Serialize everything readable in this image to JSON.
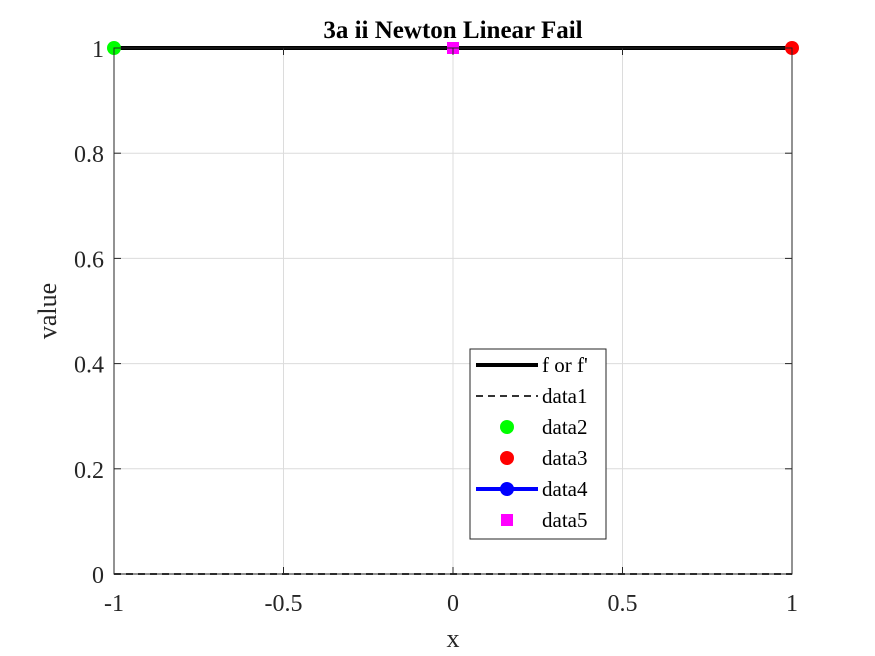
{
  "chart_data": {
    "type": "line",
    "title": "3a ii Newton Linear Fail",
    "xlabel": "x",
    "ylabel": "value",
    "xlim": [
      -1,
      1
    ],
    "ylim": [
      0,
      1
    ],
    "xticks": [
      -1,
      -0.5,
      0,
      0.5,
      1
    ],
    "xtick_labels": [
      "-1",
      "-0.5",
      "0",
      "0.5",
      "1"
    ],
    "yticks": [
      0,
      0.2,
      0.4,
      0.6,
      0.8,
      1
    ],
    "ytick_labels": [
      "0",
      "0.2",
      "0.4",
      "0.6",
      "0.8",
      "1"
    ],
    "grid": true,
    "legend_position": "bottom-center",
    "series": [
      {
        "name": "f or f'",
        "style": "solid-line",
        "color": "#000000",
        "x": [
          -1,
          1
        ],
        "y": [
          1,
          1
        ]
      },
      {
        "name": "data1",
        "style": "dashed-line",
        "color": "#333333",
        "x": [
          -1,
          1
        ],
        "y": [
          0,
          0
        ]
      },
      {
        "name": "data2",
        "style": "circle-marker",
        "color": "#00ff00",
        "x": [
          -1
        ],
        "y": [
          1
        ]
      },
      {
        "name": "data3",
        "style": "circle-marker",
        "color": "#ff0000",
        "x": [
          1
        ],
        "y": [
          1
        ]
      },
      {
        "name": "data4",
        "style": "line-circle",
        "color": "#0000ff",
        "x": [],
        "y": []
      },
      {
        "name": "data5",
        "style": "square-marker",
        "color": "#ff00ff",
        "x": [
          0
        ],
        "y": [
          1
        ]
      }
    ]
  }
}
